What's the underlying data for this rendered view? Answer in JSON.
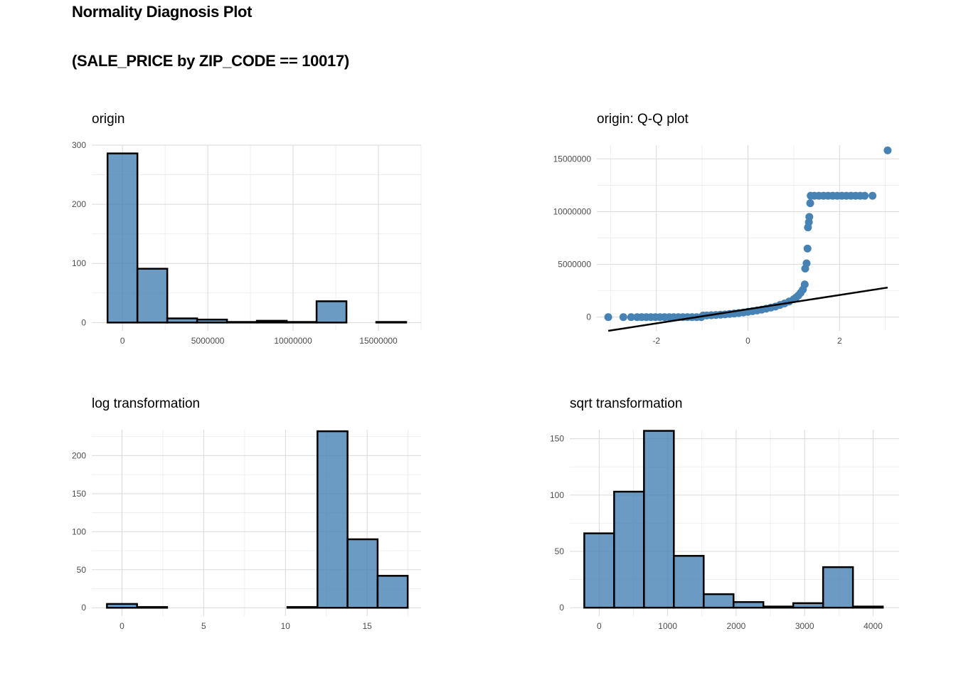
{
  "title": {
    "line1": "Normality Diagnosis Plot",
    "line2": "(SALE_PRICE by ZIP_CODE == 10017)"
  },
  "colors": {
    "fill": "#4682b4",
    "outline": "#000000",
    "grid": "#d9d9d9"
  },
  "chart_data": [
    {
      "id": "origin",
      "type": "bar",
      "title": "origin",
      "xlim": [
        -1800000,
        17500000
      ],
      "ylim": [
        -14,
        300
      ],
      "xticks": [
        0,
        5000000,
        10000000,
        15000000
      ],
      "xtick_labels": [
        "0",
        "5000000",
        "10000000",
        "15000000"
      ],
      "yticks": [
        0,
        100,
        200,
        300
      ],
      "ytick_labels": [
        "0",
        "100",
        "200",
        "300"
      ],
      "bins": [
        {
          "x0": -875000,
          "x1": 875000,
          "count": 286
        },
        {
          "x0": 875000,
          "x1": 2625000,
          "count": 91
        },
        {
          "x0": 2625000,
          "x1": 4375000,
          "count": 7
        },
        {
          "x0": 4375000,
          "x1": 6125000,
          "count": 5
        },
        {
          "x0": 6125000,
          "x1": 7875000,
          "count": 1
        },
        {
          "x0": 7875000,
          "x1": 9625000,
          "count": 3
        },
        {
          "x0": 9625000,
          "x1": 11375000,
          "count": 1
        },
        {
          "x0": 11375000,
          "x1": 13125000,
          "count": 36
        },
        {
          "x0": 13125000,
          "x1": 14875000,
          "count": 0
        },
        {
          "x0": 14875000,
          "x1": 16625000,
          "count": 1
        }
      ],
      "grid": true
    },
    {
      "id": "qq",
      "type": "scatter",
      "title": "origin: Q-Q plot",
      "xlim": [
        -3.3,
        3.3
      ],
      "ylim": [
        -1300000,
        16300000
      ],
      "xticks": [
        -2,
        0,
        2
      ],
      "xtick_labels": [
        "-2",
        "0",
        "2"
      ],
      "yticks": [
        0,
        5000000,
        10000000,
        15000000
      ],
      "ytick_labels": [
        "0",
        "5000000",
        "10000000",
        "15000000"
      ],
      "points": [
        [
          -3.05,
          0
        ],
        [
          -2.72,
          0
        ],
        [
          -2.55,
          0
        ],
        [
          -2.42,
          0
        ],
        [
          -2.32,
          0
        ],
        [
          -2.22,
          0
        ],
        [
          -2.12,
          0
        ],
        [
          -2.02,
          0
        ],
        [
          -1.92,
          0
        ],
        [
          -1.82,
          0
        ],
        [
          -1.72,
          0
        ],
        [
          -1.62,
          0
        ],
        [
          -1.52,
          0
        ],
        [
          -1.42,
          0
        ],
        [
          -1.32,
          0
        ],
        [
          -1.22,
          0
        ],
        [
          -1.12,
          0
        ],
        [
          -1.02,
          0
        ],
        [
          -0.98,
          150000
        ],
        [
          -0.9,
          160000
        ],
        [
          -0.8,
          180000
        ],
        [
          -0.7,
          200000
        ],
        [
          -0.6,
          230000
        ],
        [
          -0.5,
          260000
        ],
        [
          -0.4,
          300000
        ],
        [
          -0.3,
          340000
        ],
        [
          -0.2,
          390000
        ],
        [
          -0.1,
          440000
        ],
        [
          0.0,
          500000
        ],
        [
          0.1,
          560000
        ],
        [
          0.2,
          630000
        ],
        [
          0.3,
          710000
        ],
        [
          0.4,
          800000
        ],
        [
          0.5,
          900000
        ],
        [
          0.6,
          1000000
        ],
        [
          0.7,
          1150000
        ],
        [
          0.8,
          1300000
        ],
        [
          0.9,
          1480000
        ],
        [
          1.0,
          1700000
        ],
        [
          1.05,
          1850000
        ],
        [
          1.1,
          2050000
        ],
        [
          1.15,
          2300000
        ],
        [
          1.2,
          2600000
        ],
        [
          1.24,
          3100000
        ],
        [
          1.25,
          4600000
        ],
        [
          1.28,
          5100000
        ],
        [
          1.3,
          6500000
        ],
        [
          1.31,
          8500000
        ],
        [
          1.33,
          9000000
        ],
        [
          1.34,
          9500000
        ],
        [
          1.36,
          10800000
        ],
        [
          1.37,
          11500000
        ],
        [
          1.45,
          11500000
        ],
        [
          1.55,
          11500000
        ],
        [
          1.65,
          11500000
        ],
        [
          1.75,
          11500000
        ],
        [
          1.85,
          11500000
        ],
        [
          1.95,
          11500000
        ],
        [
          2.05,
          11500000
        ],
        [
          2.15,
          11500000
        ],
        [
          2.25,
          11500000
        ],
        [
          2.35,
          11500000
        ],
        [
          2.45,
          11500000
        ],
        [
          2.55,
          11500000
        ],
        [
          2.72,
          11500000
        ],
        [
          3.05,
          15800000
        ]
      ],
      "line": [
        [
          -3.05,
          -1300000
        ],
        [
          3.05,
          2800000
        ]
      ],
      "grid": true
    },
    {
      "id": "log",
      "type": "bar",
      "title": "log transformation",
      "xlim": [
        -1.85,
        18.3
      ],
      "ylim": [
        -11,
        234
      ],
      "xticks": [
        0,
        5,
        10,
        15
      ],
      "xtick_labels": [
        "0",
        "5",
        "10",
        "15"
      ],
      "yticks": [
        0,
        50,
        100,
        150,
        200
      ],
      "ytick_labels": [
        "0",
        "50",
        "100",
        "150",
        "200"
      ],
      "bins": [
        {
          "x0": -0.92,
          "x1": 0.92,
          "count": 5
        },
        {
          "x0": 0.92,
          "x1": 2.76,
          "count": 1
        },
        {
          "x0": 2.76,
          "x1": 4.6,
          "count": 0
        },
        {
          "x0": 4.6,
          "x1": 6.44,
          "count": 0
        },
        {
          "x0": 6.44,
          "x1": 8.28,
          "count": 0
        },
        {
          "x0": 8.28,
          "x1": 10.12,
          "count": 0
        },
        {
          "x0": 10.12,
          "x1": 11.96,
          "count": 1
        },
        {
          "x0": 11.96,
          "x1": 13.8,
          "count": 232
        },
        {
          "x0": 13.8,
          "x1": 15.64,
          "count": 90
        },
        {
          "x0": 15.64,
          "x1": 17.48,
          "count": 42
        }
      ],
      "grid": true
    },
    {
      "id": "sqrt",
      "type": "bar",
      "title": "sqrt transformation",
      "xlim": [
        -430,
        4380
      ],
      "ylim": [
        -7.5,
        158
      ],
      "xticks": [
        0,
        1000,
        2000,
        3000,
        4000
      ],
      "xtick_labels": [
        "0",
        "1000",
        "2000",
        "3000",
        "4000"
      ],
      "yticks": [
        0,
        50,
        100,
        150
      ],
      "ytick_labels": [
        "0",
        "50",
        "100",
        "150"
      ],
      "bins": [
        {
          "x0": -218,
          "x1": 218,
          "count": 66
        },
        {
          "x0": 218,
          "x1": 654,
          "count": 103
        },
        {
          "x0": 654,
          "x1": 1090,
          "count": 157
        },
        {
          "x0": 1090,
          "x1": 1526,
          "count": 46
        },
        {
          "x0": 1526,
          "x1": 1962,
          "count": 12
        },
        {
          "x0": 1962,
          "x1": 2398,
          "count": 5
        },
        {
          "x0": 2398,
          "x1": 2834,
          "count": 1
        },
        {
          "x0": 2834,
          "x1": 3270,
          "count": 4
        },
        {
          "x0": 3270,
          "x1": 3706,
          "count": 36
        },
        {
          "x0": 3706,
          "x1": 4142,
          "count": 1
        }
      ],
      "grid": true
    }
  ]
}
